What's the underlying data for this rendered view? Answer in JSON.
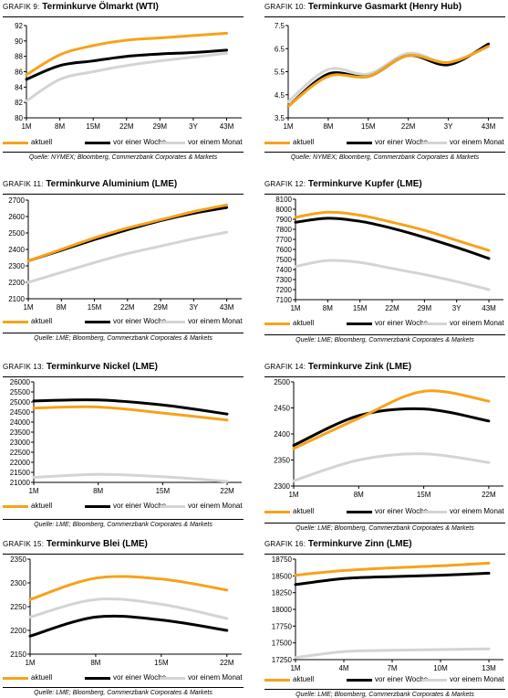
{
  "chart_data": [
    {
      "type": "line",
      "prefix": "GRAFIK 9:",
      "title": "Terminkurve Ölmarkt (WTI)",
      "categories": [
        "1M",
        "8M",
        "15M",
        "22M",
        "29M",
        "3Y",
        "43M"
      ],
      "yticks": [
        80,
        82,
        84,
        86,
        88,
        90,
        92
      ],
      "ylim": [
        80,
        92
      ],
      "series": [
        {
          "name": "aktuell",
          "color": "#f7a21b",
          "values": [
            85.6,
            88.2,
            89.4,
            90.1,
            90.4,
            90.7,
            91.0
          ]
        },
        {
          "name": "vor einer Woche",
          "color": "#000000",
          "values": [
            85.0,
            86.8,
            87.4,
            88.0,
            88.3,
            88.5,
            88.8
          ]
        },
        {
          "name": "vor einem Monat",
          "color": "#d4d4d4",
          "values": [
            82.2,
            85.0,
            86.0,
            86.8,
            87.4,
            87.9,
            88.4
          ]
        }
      ],
      "source": "Quelle: NYMEX; Bloomberg, Commerzbank Corporates & Markets"
    },
    {
      "type": "line",
      "prefix": "GRAFIK 10:",
      "title": "Terminkurve Gasmarkt (Henry Hub)",
      "categories": [
        "1M",
        "8M",
        "15M",
        "22M",
        "3Y",
        "43M"
      ],
      "yticks": [
        3.5,
        4.5,
        5.5,
        6.5,
        7.5
      ],
      "ylim": [
        3.5,
        7.5
      ],
      "series": [
        {
          "name": "aktuell",
          "color": "#f7a21b",
          "values": [
            4.0,
            5.3,
            5.3,
            6.2,
            5.9,
            6.6
          ]
        },
        {
          "name": "vor einer Woche",
          "color": "#000000",
          "values": [
            4.0,
            5.4,
            5.3,
            6.2,
            5.8,
            6.7
          ]
        },
        {
          "name": "vor einem Monat",
          "color": "#d4d4d4",
          "values": [
            4.2,
            5.6,
            5.4,
            6.3,
            5.9,
            6.6
          ]
        }
      ],
      "source": "Quelle: NYMEX; Bloomberg, Commerzbank Corporates & Markets"
    },
    {
      "type": "line",
      "prefix": "GRAFIK 11:",
      "title": "Terminkurve Aluminium (LME)",
      "categories": [
        "1M",
        "8M",
        "15M",
        "22M",
        "29M",
        "3Y",
        "43M"
      ],
      "yticks": [
        2100,
        2200,
        2300,
        2400,
        2500,
        2600,
        2700
      ],
      "ylim": [
        2100,
        2700
      ],
      "series": [
        {
          "name": "aktuell",
          "color": "#f7a21b",
          "values": [
            2330,
            2400,
            2470,
            2530,
            2580,
            2630,
            2670
          ]
        },
        {
          "name": "vor einer Woche",
          "color": "#000000",
          "values": [
            2330,
            2395,
            2460,
            2520,
            2575,
            2620,
            2655
          ]
        },
        {
          "name": "vor einem Monat",
          "color": "#d4d4d4",
          "values": [
            2200,
            2260,
            2320,
            2375,
            2420,
            2465,
            2505
          ]
        }
      ],
      "source": "Quelle: LME; Bloomberg, Commerzbank Corporates & Markets"
    },
    {
      "type": "line",
      "prefix": "GRAFIK 12:",
      "title": "Terminkurve Kupfer (LME)",
      "categories": [
        "1M",
        "8M",
        "15M",
        "22M",
        "29M",
        "3Y",
        "43M"
      ],
      "yticks": [
        7100,
        7200,
        7300,
        7400,
        7500,
        7600,
        7700,
        7800,
        7900,
        8000,
        8100
      ],
      "ylim": [
        7100,
        8100
      ],
      "series": [
        {
          "name": "aktuell",
          "color": "#f7a21b",
          "values": [
            7920,
            7970,
            7940,
            7870,
            7790,
            7690,
            7590
          ]
        },
        {
          "name": "vor einer Woche",
          "color": "#000000",
          "values": [
            7870,
            7910,
            7880,
            7810,
            7720,
            7620,
            7510
          ]
        },
        {
          "name": "vor einem Monat",
          "color": "#d4d4d4",
          "values": [
            7430,
            7490,
            7470,
            7410,
            7350,
            7280,
            7200
          ]
        }
      ],
      "source": "Quelle: LME; Bloomberg, Commerzbank Corporates & Markets"
    },
    {
      "type": "line",
      "prefix": "GRAFIK 13:",
      "title": "Terminkurve Nickel (LME)",
      "categories": [
        "1M",
        "8M",
        "15M",
        "22M"
      ],
      "yticks": [
        21000,
        21500,
        22000,
        22500,
        23000,
        23500,
        24000,
        24500,
        25000,
        25500,
        26000
      ],
      "ylim": [
        21000,
        26000
      ],
      "series": [
        {
          "name": "aktuell",
          "color": "#f7a21b",
          "values": [
            24700,
            24750,
            24450,
            24100
          ]
        },
        {
          "name": "vor einer Woche",
          "color": "#000000",
          "values": [
            25050,
            25100,
            24850,
            24400
          ]
        },
        {
          "name": "vor einem Monat",
          "color": "#d4d4d4",
          "values": [
            21250,
            21400,
            21280,
            21050
          ]
        }
      ],
      "source": "Quelle: LME; Bloomberg, Commerzbank Corporates & Markets"
    },
    {
      "type": "line",
      "prefix": "GRAFIK 14:",
      "title": "Terminkurve Zink (LME)",
      "categories": [
        "1M",
        "8M",
        "15M",
        "22M"
      ],
      "yticks": [
        2300,
        2350,
        2400,
        2450,
        2500
      ],
      "ylim": [
        2300,
        2500
      ],
      "series": [
        {
          "name": "aktuell",
          "color": "#f7a21b",
          "values": [
            2372,
            2430,
            2482,
            2463
          ]
        },
        {
          "name": "vor einer Woche",
          "color": "#000000",
          "values": [
            2378,
            2435,
            2448,
            2425
          ]
        },
        {
          "name": "vor einem Monat",
          "color": "#d4d4d4",
          "values": [
            2310,
            2350,
            2362,
            2345
          ]
        }
      ],
      "source": "Quelle: LME; Bloomberg, Commerzbank Corporates & Markets"
    },
    {
      "type": "line",
      "prefix": "GRAFIK 15:",
      "title": "Terminkurve Blei (LME)",
      "categories": [
        "1M",
        "8M",
        "15M",
        "22M"
      ],
      "yticks": [
        2150,
        2200,
        2250,
        2300,
        2350
      ],
      "ylim": [
        2150,
        2350
      ],
      "series": [
        {
          "name": "aktuell",
          "color": "#f7a21b",
          "values": [
            2265,
            2310,
            2308,
            2285
          ]
        },
        {
          "name": "vor einer Woche",
          "color": "#000000",
          "values": [
            2188,
            2228,
            2222,
            2200
          ]
        },
        {
          "name": "vor einem Monat",
          "color": "#d4d4d4",
          "values": [
            2228,
            2265,
            2255,
            2225
          ]
        }
      ],
      "source": "Quelle: LME; Bloomberg, Commerzbank Corporates & Markets"
    },
    {
      "type": "line",
      "prefix": "GRAFIK 16:",
      "title": "Terminkurve Zinn (LME)",
      "categories": [
        "1M",
        "4M",
        "7M",
        "10M",
        "13M"
      ],
      "yticks": [
        17250,
        17500,
        17750,
        18000,
        18250,
        18500,
        18750
      ],
      "ylim": [
        17250,
        18750
      ],
      "series": [
        {
          "name": "aktuell",
          "color": "#f7a21b",
          "values": [
            18510,
            18580,
            18620,
            18650,
            18690
          ]
        },
        {
          "name": "vor einer Woche",
          "color": "#000000",
          "values": [
            18370,
            18460,
            18490,
            18510,
            18540
          ]
        },
        {
          "name": "vor einem Monat",
          "color": "#d4d4d4",
          "values": [
            17280,
            17370,
            17390,
            17400,
            17410
          ]
        }
      ],
      "source": "Quelle: LME; Bloomberg, Commerzbank Corporates & Markets"
    }
  ]
}
